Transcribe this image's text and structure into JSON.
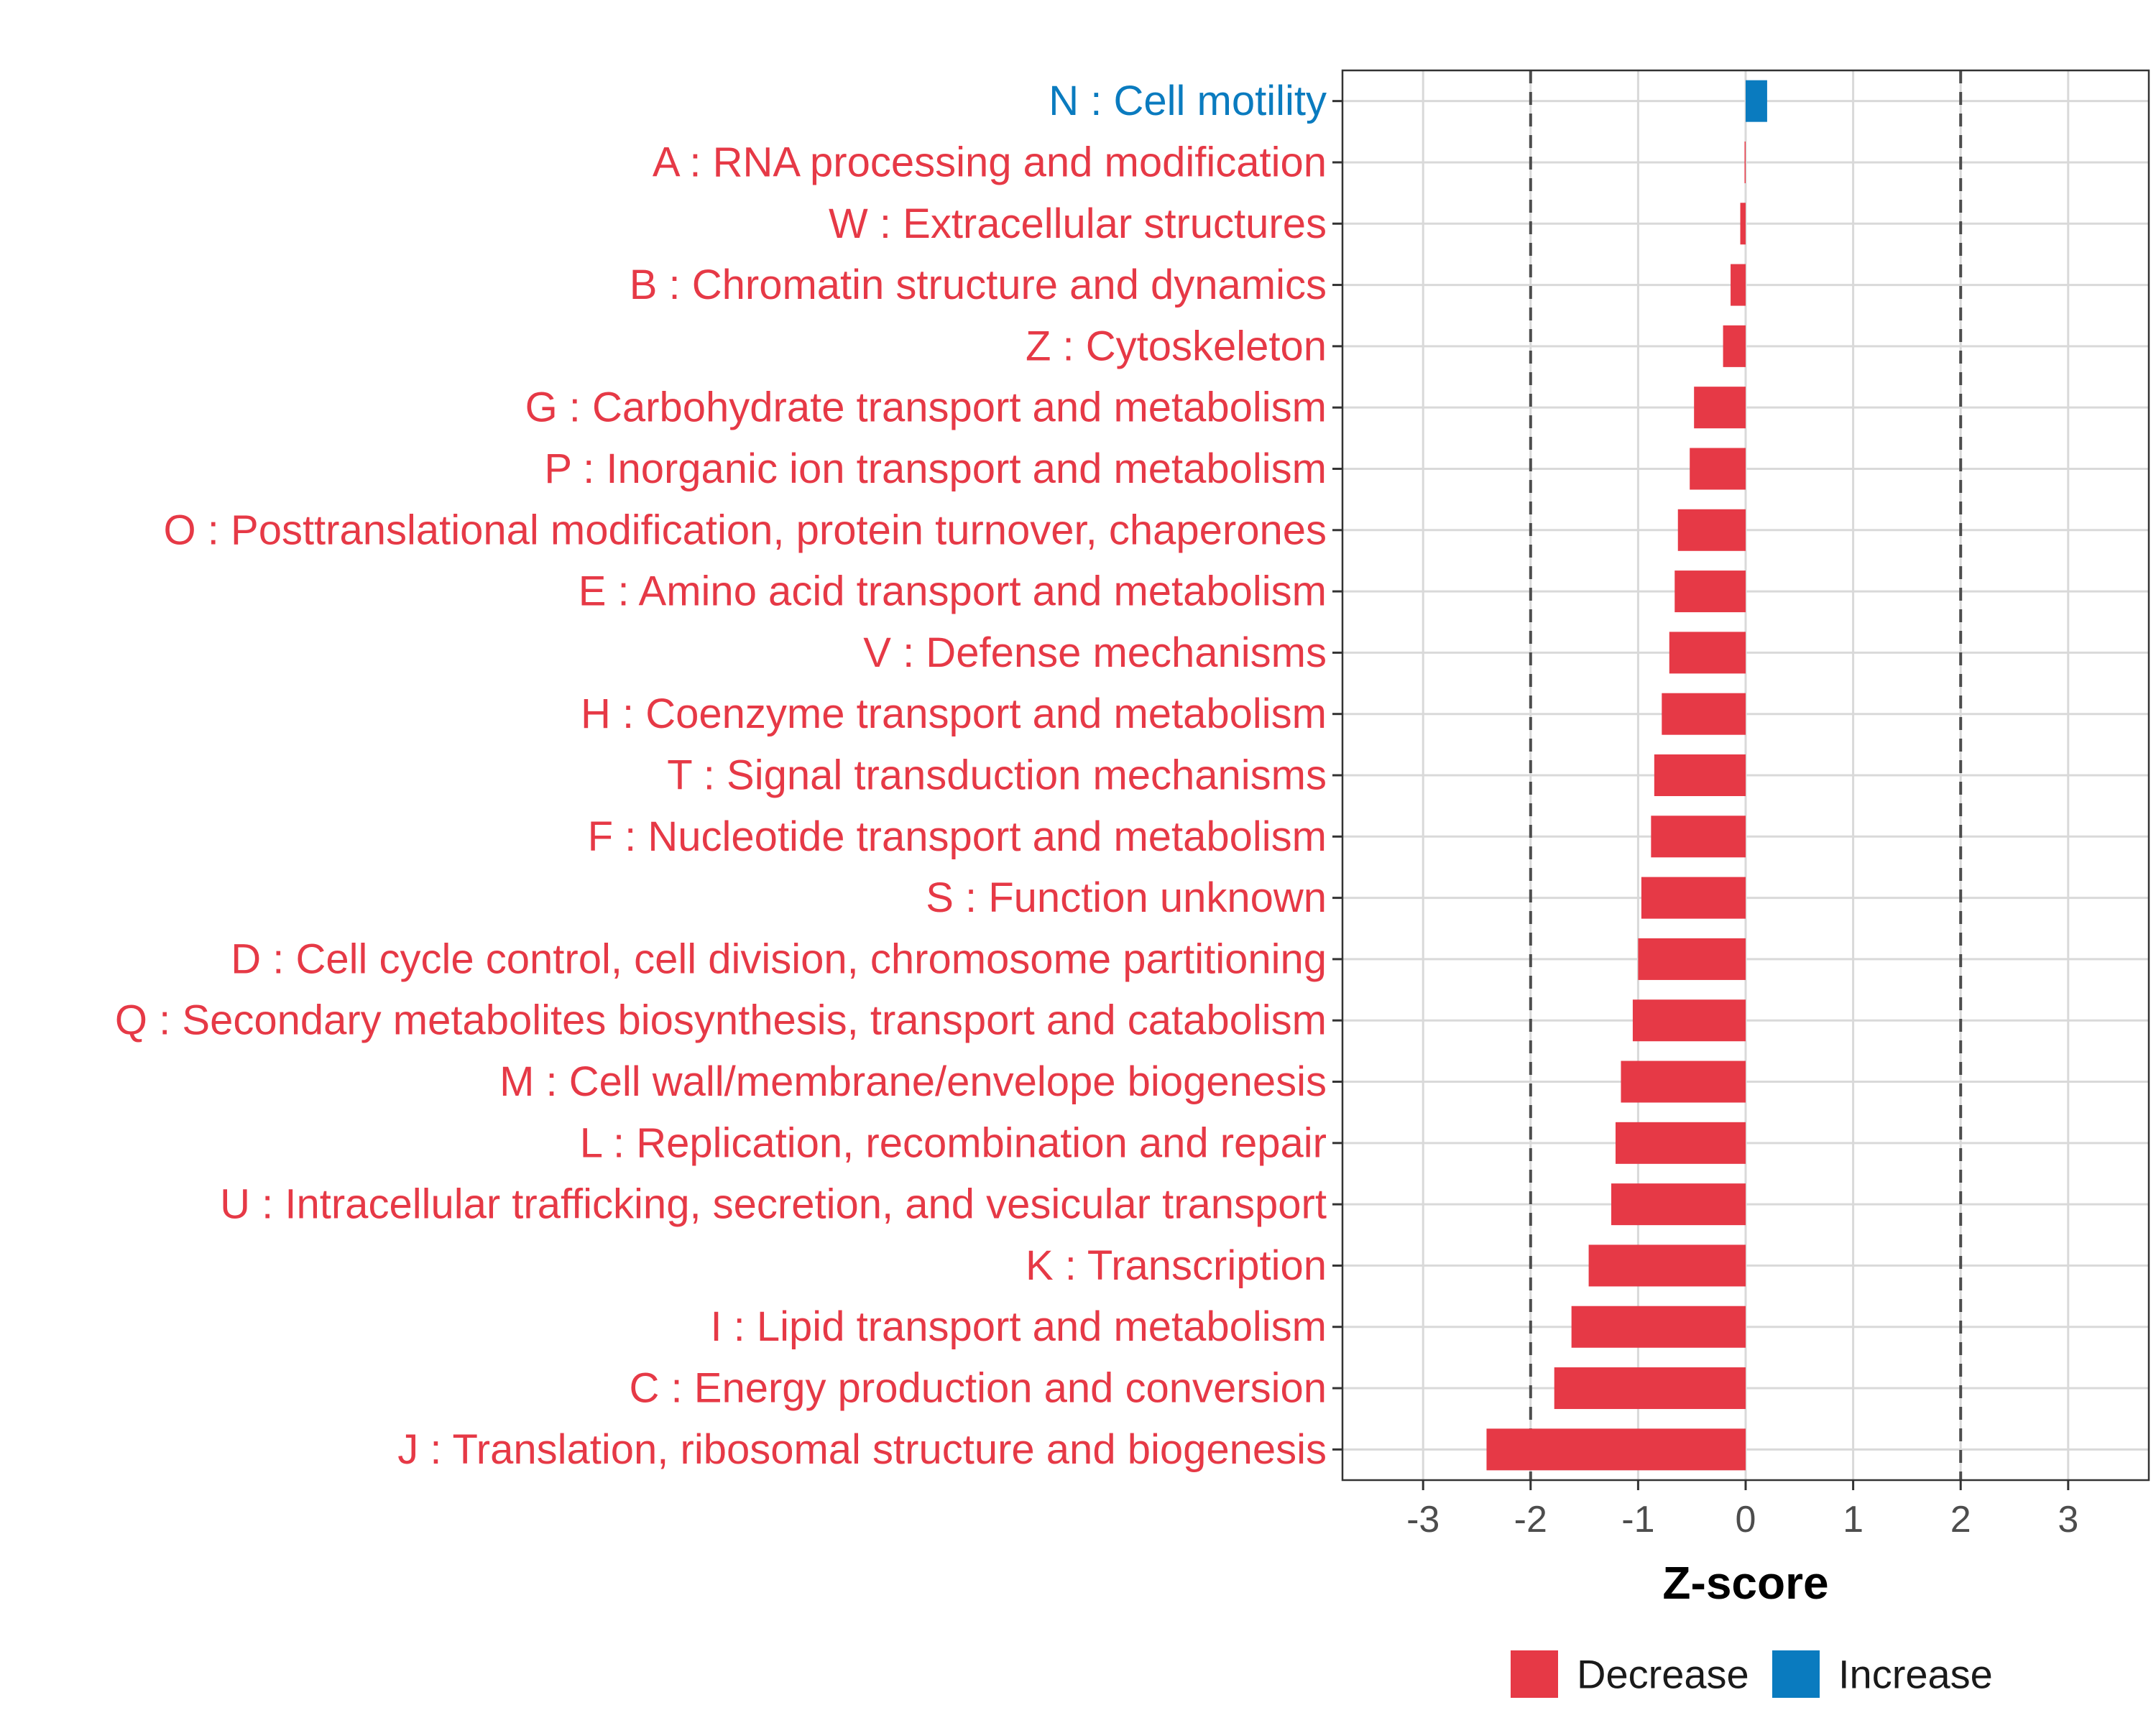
{
  "chart_data": {
    "type": "bar",
    "orientation": "horizontal",
    "title": "",
    "xlabel": "Z-score",
    "ylabel": "",
    "xlim": [
      -3.75,
      3.75
    ],
    "xticks": [
      -3,
      -2,
      -1,
      0,
      1,
      2,
      3
    ],
    "xtick_labels": [
      "-3",
      "-2",
      "-1",
      "0",
      "1",
      "2",
      "3"
    ],
    "reference_lines": [
      -2,
      2
    ],
    "grid": true,
    "colors": {
      "Decrease": "#E63946",
      "Increase": "#0A7BBF"
    },
    "categories": [
      "N : Cell motility",
      "A : RNA processing and modification",
      "W : Extracellular structures",
      "B : Chromatin structure and dynamics",
      "Z : Cytoskeleton",
      "G : Carbohydrate transport and metabolism",
      "P : Inorganic ion transport and metabolism",
      "O : Posttranslational modification, protein turnover, chaperones",
      "E : Amino acid transport and metabolism",
      "V : Defense mechanisms",
      "H : Coenzyme transport and metabolism",
      "T : Signal transduction mechanisms",
      "F : Nucleotide transport and metabolism",
      "S : Function unknown",
      "D : Cell cycle control, cell division, chromosome partitioning",
      "Q : Secondary metabolites biosynthesis, transport and catabolism",
      "M : Cell wall/membrane/envelope biogenesis",
      "L : Replication, recombination and repair",
      "U : Intracellular trafficking, secretion, and vesicular transport",
      "K : Transcription",
      "I : Lipid transport and metabolism",
      "C : Energy production and conversion",
      "J : Translation, ribosomal structure and biogenesis"
    ],
    "values": [
      0.2,
      -0.01,
      -0.05,
      -0.14,
      -0.21,
      -0.48,
      -0.52,
      -0.63,
      -0.66,
      -0.71,
      -0.78,
      -0.85,
      -0.88,
      -0.97,
      -1.0,
      -1.05,
      -1.16,
      -1.21,
      -1.25,
      -1.46,
      -1.62,
      -1.78,
      -2.41
    ],
    "groups": [
      "Increase",
      "Decrease",
      "Decrease",
      "Decrease",
      "Decrease",
      "Decrease",
      "Decrease",
      "Decrease",
      "Decrease",
      "Decrease",
      "Decrease",
      "Decrease",
      "Decrease",
      "Decrease",
      "Decrease",
      "Decrease",
      "Decrease",
      "Decrease",
      "Decrease",
      "Decrease",
      "Decrease",
      "Decrease",
      "Decrease"
    ],
    "legend": {
      "position": "bottom",
      "entries": [
        "Decrease",
        "Increase"
      ]
    }
  }
}
